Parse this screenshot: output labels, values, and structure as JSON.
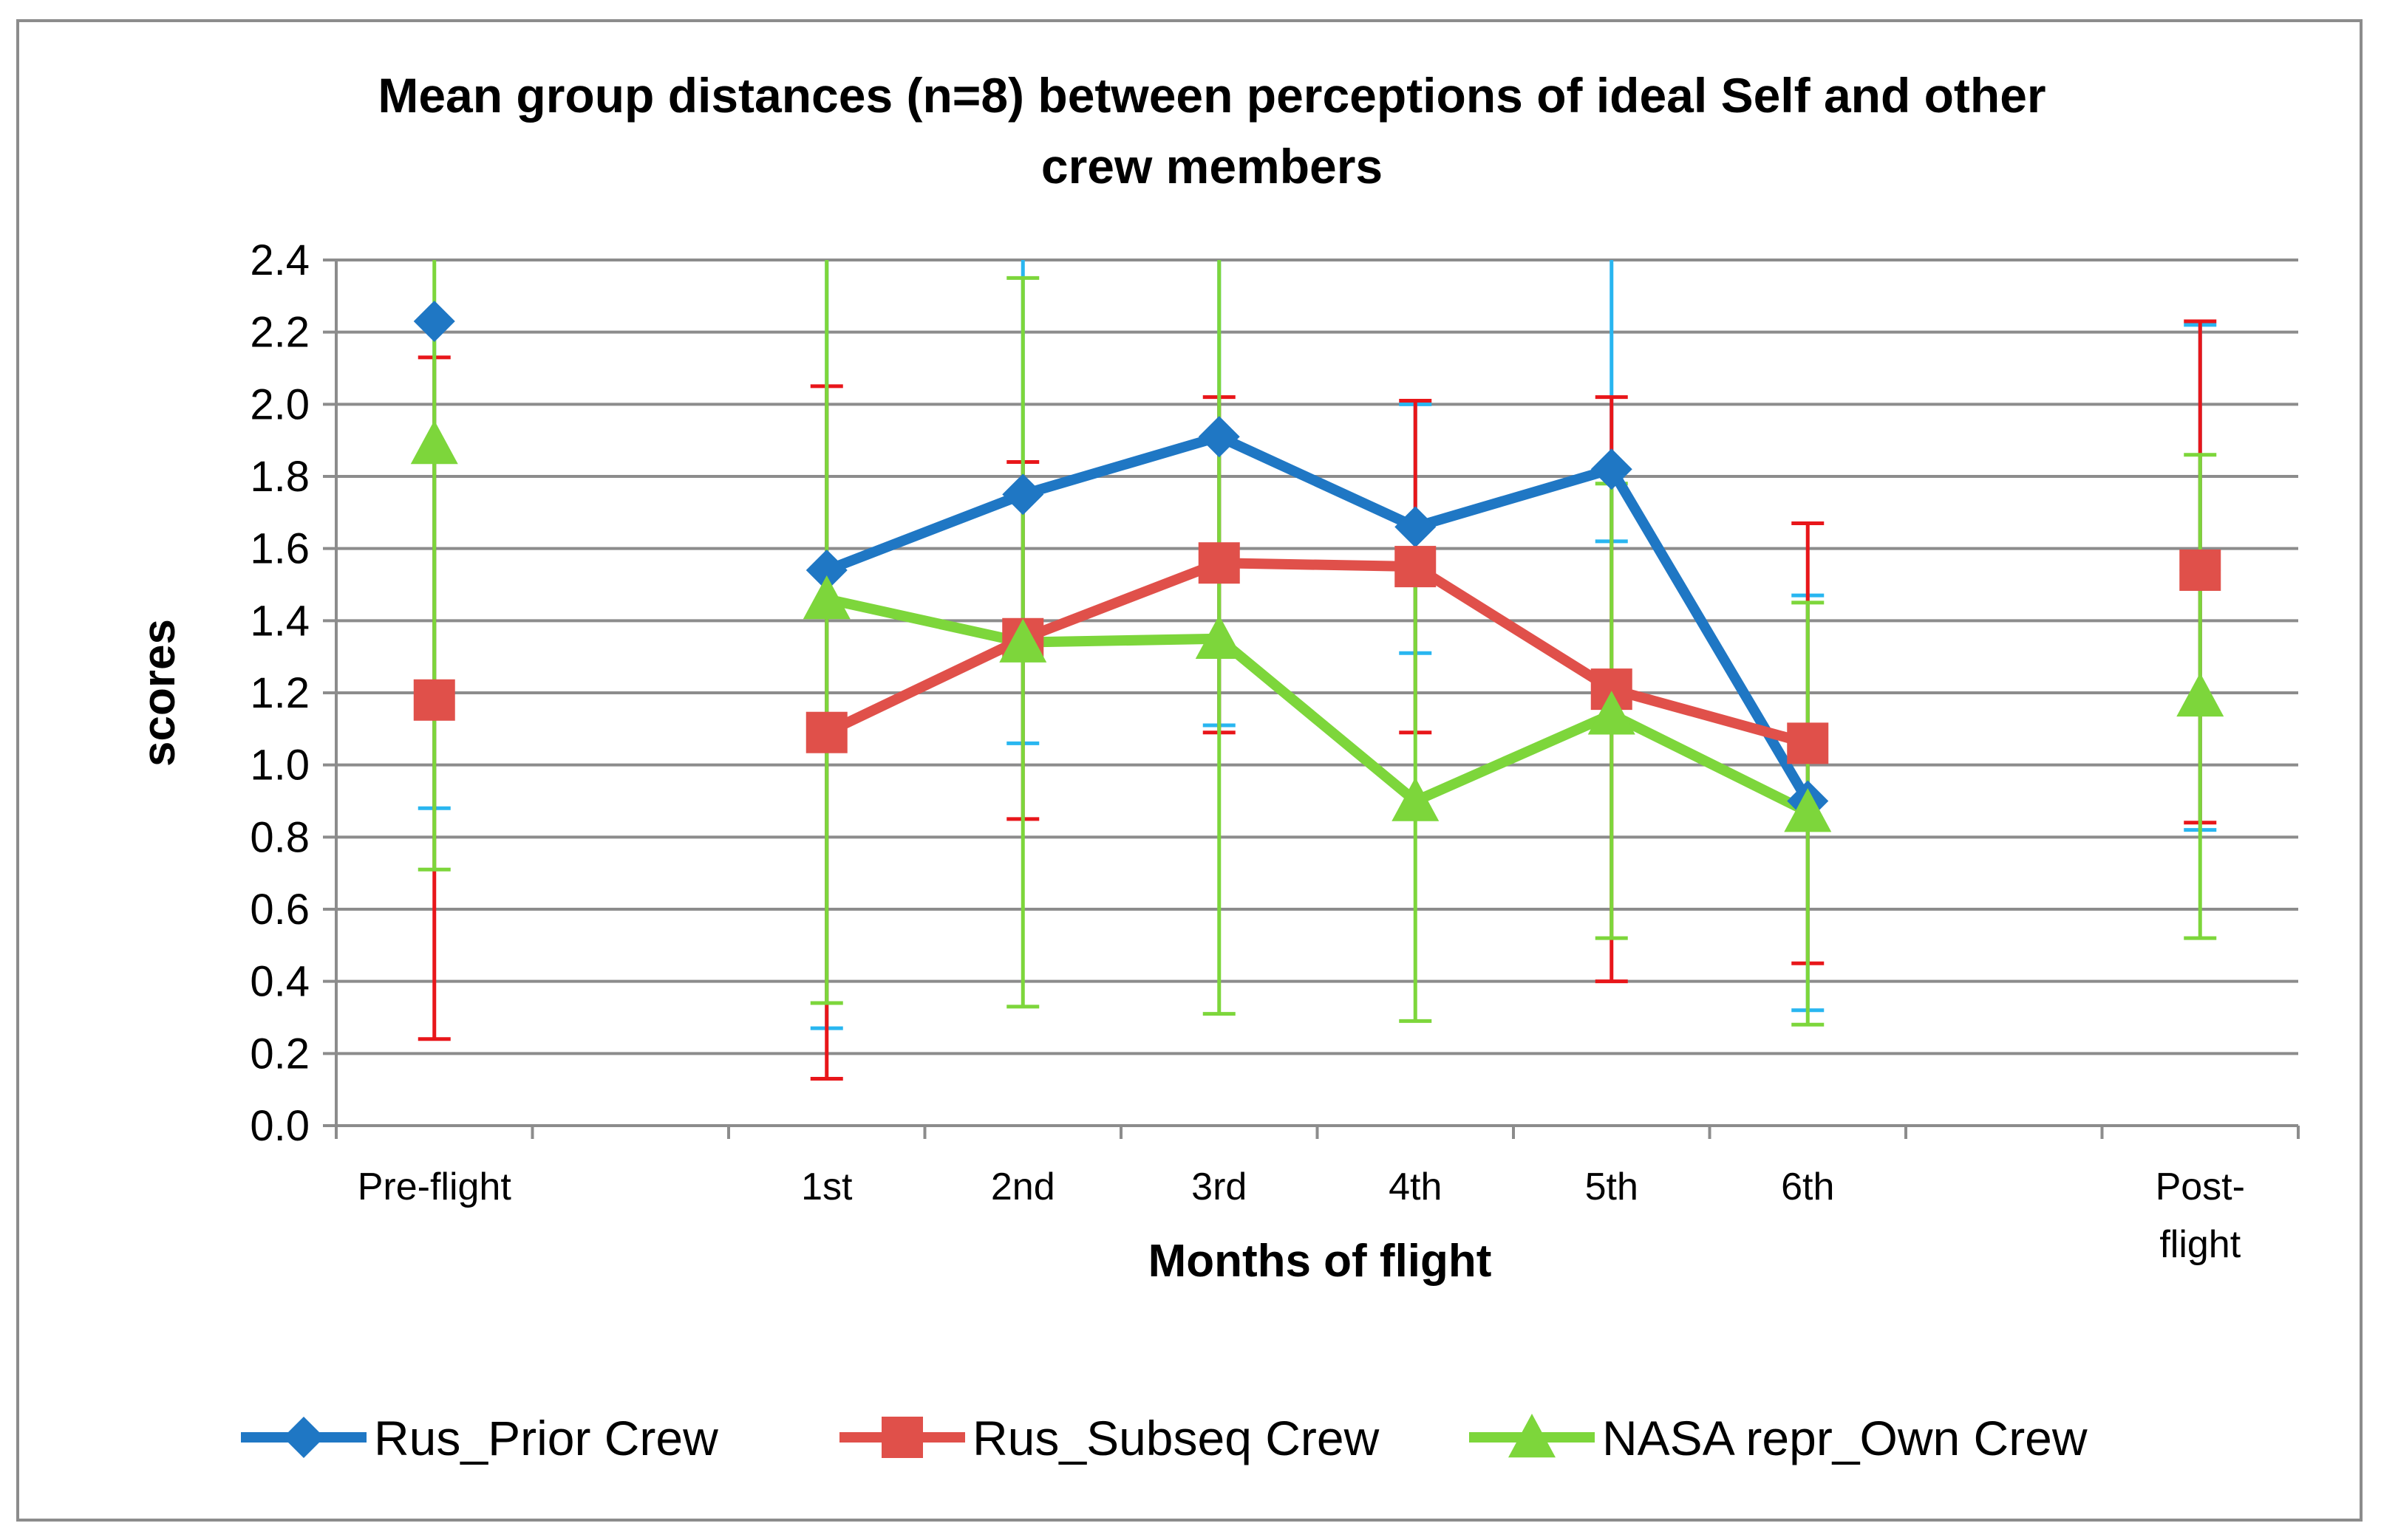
{
  "chart_data": {
    "type": "line",
    "title_lines": [
      "Mean group distances (n=8) between perceptions  of ideal Self and other",
      "crew members"
    ],
    "xlabel": "Months of flight",
    "ylabel": "scores",
    "ylim": [
      0,
      2.4
    ],
    "ytick_labels": [
      "0.0",
      "0.2",
      "0.4",
      "0.6",
      "0.8",
      "1.0",
      "1.2",
      "1.4",
      "1.6",
      "1.8",
      "2.0",
      "2.2",
      "2.4"
    ],
    "categories": [
      "Pre-flight",
      "",
      "1st",
      "2nd",
      "3rd",
      "4th",
      "5th",
      "6th",
      "",
      "Post-flight"
    ],
    "category_lines": [
      [
        "Pre-flight"
      ],
      [],
      [
        "1st"
      ],
      [
        "2nd"
      ],
      [
        "3rd"
      ],
      [
        "4th"
      ],
      [
        "5th"
      ],
      [
        "6th"
      ],
      [],
      [
        "Post-",
        "flight"
      ]
    ],
    "grid": true,
    "legend_position": "bottom",
    "series": [
      {
        "name": "Rus_Prior Crew",
        "color": "#1f77c4",
        "errorbar_color": "#29b6f0",
        "marker": "diamond",
        "values": [
          2.23,
          null,
          1.54,
          1.75,
          1.91,
          1.66,
          1.82,
          0.9,
          null,
          1.54
        ],
        "err_low": [
          0.88,
          null,
          0.27,
          1.06,
          1.11,
          1.31,
          1.62,
          0.32,
          null,
          0.82
        ],
        "err_high": [
          null,
          null,
          2.4,
          2.4,
          2.4,
          2.0,
          2.4,
          1.47,
          null,
          2.22
        ],
        "connected": [
          false,
          false,
          true,
          true,
          true,
          true,
          true,
          true,
          false,
          false
        ]
      },
      {
        "name": "Rus_Subseq Crew",
        "color": "#e0504a",
        "errorbar_color": "#e8161a",
        "marker": "square",
        "values": [
          1.18,
          null,
          1.09,
          1.35,
          1.56,
          1.55,
          1.21,
          1.06,
          null,
          1.54
        ],
        "err_low": [
          0.24,
          null,
          0.13,
          0.85,
          1.09,
          1.09,
          0.4,
          0.45,
          null,
          0.84
        ],
        "err_high": [
          2.13,
          null,
          2.05,
          1.84,
          2.02,
          2.01,
          2.02,
          1.67,
          null,
          2.23
        ],
        "connected": [
          false,
          false,
          true,
          true,
          true,
          true,
          true,
          true,
          false,
          false
        ]
      },
      {
        "name": "NASA repr_Own Crew",
        "color": "#7dd63b",
        "errorbar_color": "#7dd63b",
        "marker": "triangle",
        "values": [
          1.89,
          null,
          1.46,
          1.34,
          1.35,
          0.9,
          1.14,
          0.87,
          null,
          1.19
        ],
        "err_low": [
          0.71,
          null,
          0.34,
          0.33,
          0.31,
          0.29,
          0.52,
          0.28,
          null,
          0.52
        ],
        "err_high": [
          2.4,
          null,
          2.4,
          2.35,
          2.4,
          1.55,
          1.78,
          1.45,
          null,
          1.86
        ],
        "connected": [
          false,
          false,
          true,
          true,
          true,
          true,
          true,
          true,
          false,
          false
        ]
      }
    ]
  }
}
